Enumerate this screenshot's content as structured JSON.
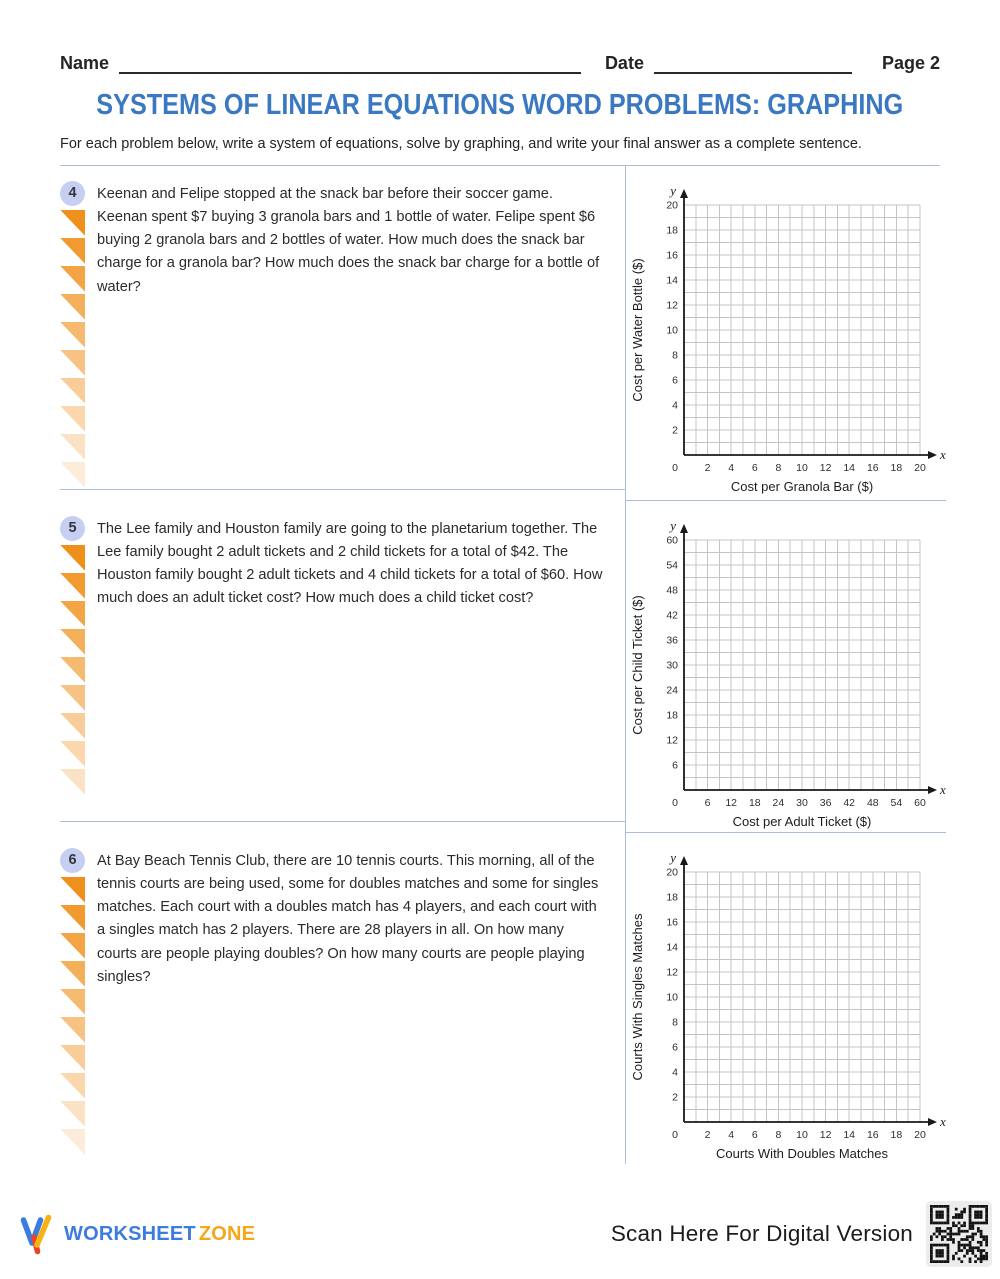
{
  "header": {
    "name_label": "Name",
    "date_label": "Date",
    "page_label": "Page 2"
  },
  "title": "SYSTEMS OF LINEAR EQUATIONS WORD PROBLEMS: GRAPHING",
  "instructions": "For each problem below, write a system of equations, solve by graphing, and write your final answer as a complete sentence.",
  "problems": [
    {
      "number": "4",
      "text": "Keenan and Felipe stopped at the snack bar before their soccer game. Keenan spent $7 buying 3 granola bars and 1 bottle of water. Felipe spent $6 buying 2 granola bars and 2 bottles of water. How much does the snack bar charge for a granola bar? How much does the snack bar charge for a bottle of water?",
      "triangle_count": 10
    },
    {
      "number": "5",
      "text": "The Lee family and Houston family are going to the planetarium together. The Lee family bought 2 adult tickets and 2 child tickets for a total of $42. The Houston family bought 2 adult tickets and 4 child tickets for a total of $60. How much does an adult ticket cost? How much does a child ticket cost?",
      "triangle_count": 9
    },
    {
      "number": "6",
      "text": "At Bay Beach Tennis Club, there are 10 tennis courts. This morning, all of the tennis courts are being used, some for doubles matches and some for singles matches. Each court with a doubles match has 4 players, and each court with a singles match has 2 players. There are 28 players in all. On how many courts are people playing doubles? On how many courts are people playing singles?",
      "triangle_count": 10
    }
  ],
  "chart_data": [
    {
      "type": "grid",
      "title": "",
      "xlabel": "Cost per Granola Bar ($)",
      "ylabel": "Cost per Water Bottle ($)",
      "x_axis_letter": "x",
      "y_axis_letter": "y",
      "xlim": [
        0,
        20
      ],
      "ylim": [
        0,
        20
      ],
      "grid_cells": 20,
      "grid": true,
      "x_tick_labels": [
        "0",
        "2",
        "4",
        "6",
        "8",
        "10",
        "12",
        "14",
        "16",
        "18",
        "20"
      ],
      "y_tick_labels": [
        "2",
        "4",
        "6",
        "8",
        "10",
        "12",
        "14",
        "16",
        "18",
        "20"
      ],
      "series": []
    },
    {
      "type": "grid",
      "title": "",
      "xlabel": "Cost per Adult Ticket ($)",
      "ylabel": "Cost per Child Ticket ($)",
      "x_axis_letter": "x",
      "y_axis_letter": "y",
      "xlim": [
        0,
        60
      ],
      "ylim": [
        0,
        60
      ],
      "grid_cells": 20,
      "grid": true,
      "x_tick_labels": [
        "0",
        "6",
        "12",
        "18",
        "24",
        "30",
        "36",
        "42",
        "48",
        "54",
        "60"
      ],
      "y_tick_labels": [
        "6",
        "12",
        "18",
        "24",
        "30",
        "36",
        "42",
        "48",
        "54",
        "60"
      ],
      "series": []
    },
    {
      "type": "grid",
      "title": "",
      "xlabel": "Courts With Doubles Matches",
      "ylabel": "Courts With Singles Matches",
      "x_axis_letter": "x",
      "y_axis_letter": "y",
      "xlim": [
        0,
        20
      ],
      "ylim": [
        0,
        20
      ],
      "grid_cells": 20,
      "grid": true,
      "x_tick_labels": [
        "0",
        "2",
        "4",
        "6",
        "8",
        "10",
        "12",
        "14",
        "16",
        "18",
        "20"
      ],
      "y_tick_labels": [
        "2",
        "4",
        "6",
        "8",
        "10",
        "12",
        "14",
        "16",
        "18",
        "20"
      ],
      "series": []
    }
  ],
  "footer": {
    "brand_word1": "WORKSHEET",
    "brand_word2": "ZONE",
    "scan_text": "Scan Here For Digital Version"
  },
  "colors": {
    "title_blue": "#3a79c2",
    "divider_blue": "#aebdd9",
    "badge_lavender": "#c6cef1",
    "triangle_orange": "#f0901c",
    "brand_blue": "#3b7ce0",
    "brand_yellow": "#f5a71c",
    "brand_red": "#e8452c",
    "grid_gray": "#c4c4c4",
    "axis_black": "#191919"
  }
}
